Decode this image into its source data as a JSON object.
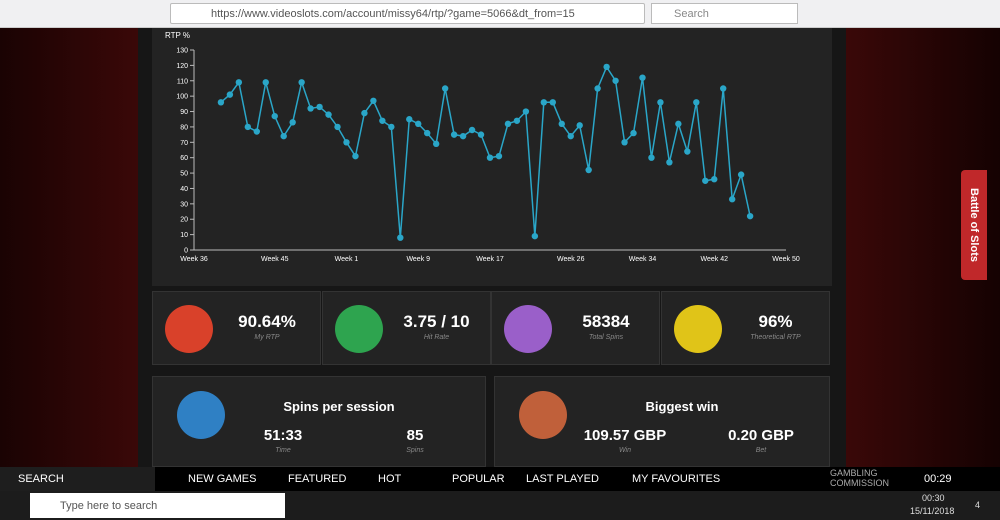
{
  "browser": {
    "url": "https://www.videoslots.com/account/missy64/rtp/?game=5066&dt_from=15",
    "search_placeholder": "Search"
  },
  "chart_data": {
    "type": "line",
    "ylabel": "RTP %",
    "color": "#2aa6c8",
    "categories": [
      "Week 36",
      null,
      null,
      null,
      null,
      null,
      null,
      null,
      null,
      "Week 45",
      null,
      null,
      null,
      null,
      null,
      null,
      null,
      "Week 1",
      null,
      null,
      null,
      null,
      null,
      null,
      null,
      "Week 9",
      null,
      null,
      null,
      null,
      null,
      null,
      null,
      "Week 17",
      null,
      null,
      null,
      null,
      null,
      null,
      null,
      null,
      "Week 26",
      null,
      null,
      null,
      null,
      null,
      null,
      null,
      "Week 34",
      null,
      null,
      null,
      null,
      null,
      null,
      null,
      "Week 42",
      null,
      null,
      null,
      null,
      null,
      null,
      null,
      "Week 50"
    ],
    "values": [
      null,
      null,
      null,
      96,
      101,
      109,
      80,
      77,
      109,
      87,
      74,
      83,
      109,
      92,
      93,
      88,
      80,
      70,
      61,
      89,
      97,
      84,
      80,
      8,
      85,
      82,
      76,
      69,
      105,
      75,
      74,
      78,
      75,
      60,
      61,
      82,
      84,
      90,
      9,
      96,
      96,
      82,
      74,
      81,
      52,
      105,
      119,
      110,
      70,
      76,
      112,
      60,
      96,
      57,
      82,
      64,
      96,
      45,
      46,
      105,
      33,
      49,
      22,
      null,
      null,
      null,
      null
    ],
    "ylim": [
      0,
      130
    ],
    "yticks": [
      0,
      10,
      20,
      30,
      40,
      50,
      60,
      70,
      80,
      90,
      100,
      110,
      120,
      130
    ]
  },
  "stats": [
    {
      "value": "90.64%",
      "label": "My RTP"
    },
    {
      "value": "3.75 / 10",
      "label": "Hit Rate"
    },
    {
      "value": "58384",
      "label": "Total Spins"
    },
    {
      "value": "96%",
      "label": "Theoretical RTP"
    }
  ],
  "session": {
    "title": "Spins per session",
    "items": [
      {
        "value": "51:33",
        "label": "Time"
      },
      {
        "value": "85",
        "label": "Spins"
      }
    ]
  },
  "biggest": {
    "title": "Biggest win",
    "items": [
      {
        "value": "109.57 GBP",
        "label": "Win"
      },
      {
        "value": "0.20 GBP",
        "label": "Bet"
      }
    ]
  },
  "side_tab": "Battle of Slots",
  "nav": {
    "search": "SEARCH",
    "items": [
      "NEW GAMES",
      "FEATURED",
      "HOT",
      "POPULAR",
      "LAST PLAYED",
      "MY FAVOURITES"
    ],
    "commission": [
      "GAMBLING",
      "COMMISSION"
    ],
    "clock": "00:29"
  },
  "taskbar": {
    "search": "Type here to search",
    "time": "00:30",
    "date": "15/11/2018",
    "notifications": "4"
  }
}
